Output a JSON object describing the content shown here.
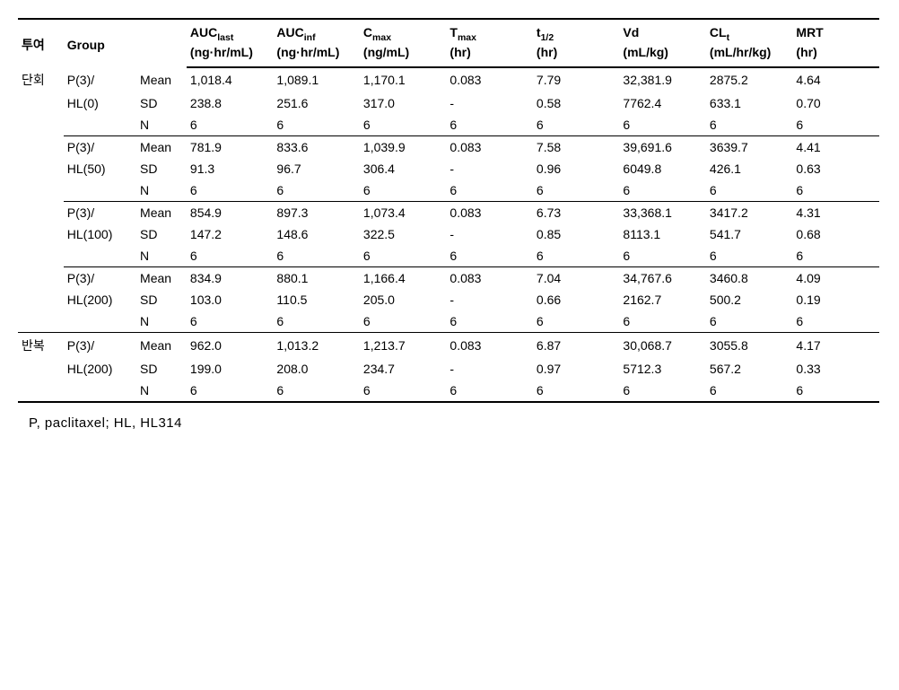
{
  "table": {
    "type": "table",
    "background_color": "#ffffff",
    "border_color": "#000000",
    "text_color": "#000000",
    "font_size": 14,
    "header_font_weight": 700,
    "columns": {
      "admin": {
        "label": "투여",
        "unit": ""
      },
      "group": {
        "label": "Group",
        "unit": ""
      },
      "stat": {
        "label": "",
        "unit": ""
      },
      "auclast": {
        "label_html": "AUC<sub>last</sub>",
        "unit": "(ng·hr/mL)"
      },
      "aucinf": {
        "label_html": "AUC<sub>inf</sub>",
        "unit": "(ng·hr/mL)"
      },
      "cmax": {
        "label_html": "C<sub>max</sub>",
        "unit": "(ng/mL)"
      },
      "tmax": {
        "label_html": "T<sub>max</sub>",
        "unit": "(hr)"
      },
      "thalf": {
        "label_html": "t<sub>1/2</sub>",
        "unit": "(hr)"
      },
      "vd": {
        "label": "Vd",
        "unit": "(mL/kg)"
      },
      "clt": {
        "label_html": "CL<sub>t</sub>",
        "unit": "(mL/hr/kg)"
      },
      "mrt": {
        "label": "MRT",
        "unit": "(hr)"
      }
    },
    "sections": [
      {
        "admin": "단회",
        "groups": [
          {
            "group_l1": "P(3)/",
            "group_l2": "HL(0)",
            "rows": [
              {
                "stat": "Mean",
                "auclast": "1,018.4",
                "aucinf": "1,089.1",
                "cmax": "1,170.1",
                "tmax": "0.083",
                "thalf": "7.79",
                "vd": "32,381.9",
                "clt": "2875.2",
                "mrt": "4.64"
              },
              {
                "stat": "SD",
                "auclast": "238.8",
                "aucinf": "251.6",
                "cmax": "317.0",
                "tmax": "-",
                "thalf": "0.58",
                "vd": "7762.4",
                "clt": "633.1",
                "mrt": "0.70"
              },
              {
                "stat": "N",
                "auclast": "6",
                "aucinf": "6",
                "cmax": "6",
                "tmax": "6",
                "thalf": "6",
                "vd": "6",
                "clt": "6",
                "mrt": "6"
              }
            ]
          },
          {
            "group_l1": "P(3)/",
            "group_l2": "HL(50)",
            "rows": [
              {
                "stat": "Mean",
                "auclast": "781.9",
                "aucinf": "833.6",
                "cmax": "1,039.9",
                "tmax": "0.083",
                "thalf": "7.58",
                "vd": "39,691.6",
                "clt": "3639.7",
                "mrt": "4.41"
              },
              {
                "stat": "SD",
                "auclast": "91.3",
                "aucinf": "96.7",
                "cmax": "306.4",
                "tmax": "-",
                "thalf": "0.96",
                "vd": "6049.8",
                "clt": "426.1",
                "mrt": "0.63"
              },
              {
                "stat": "N",
                "auclast": "6",
                "aucinf": "6",
                "cmax": "6",
                "tmax": "6",
                "thalf": "6",
                "vd": "6",
                "clt": "6",
                "mrt": "6"
              }
            ]
          },
          {
            "group_l1": "P(3)/",
            "group_l2": "HL(100)",
            "rows": [
              {
                "stat": "Mean",
                "auclast": "854.9",
                "aucinf": "897.3",
                "cmax": "1,073.4",
                "tmax": "0.083",
                "thalf": "6.73",
                "vd": "33,368.1",
                "clt": "3417.2",
                "mrt": "4.31"
              },
              {
                "stat": "SD",
                "auclast": "147.2",
                "aucinf": "148.6",
                "cmax": "322.5",
                "tmax": "-",
                "thalf": "0.85",
                "vd": "8113.1",
                "clt": "541.7",
                "mrt": "0.68"
              },
              {
                "stat": "N",
                "auclast": "6",
                "aucinf": "6",
                "cmax": "6",
                "tmax": "6",
                "thalf": "6",
                "vd": "6",
                "clt": "6",
                "mrt": "6"
              }
            ]
          },
          {
            "group_l1": "P(3)/",
            "group_l2": "HL(200)",
            "rows": [
              {
                "stat": "Mean",
                "auclast": "834.9",
                "aucinf": "880.1",
                "cmax": "1,166.4",
                "tmax": "0.083",
                "thalf": "7.04",
                "vd": "34,767.6",
                "clt": "3460.8",
                "mrt": "4.09"
              },
              {
                "stat": "SD",
                "auclast": "103.0",
                "aucinf": "110.5",
                "cmax": "205.0",
                "tmax": "-",
                "thalf": "0.66",
                "vd": "2162.7",
                "clt": "500.2",
                "mrt": "0.19"
              },
              {
                "stat": "N",
                "auclast": "6",
                "aucinf": "6",
                "cmax": "6",
                "tmax": "6",
                "thalf": "6",
                "vd": "6",
                "clt": "6",
                "mrt": "6"
              }
            ]
          }
        ]
      },
      {
        "admin": "반복",
        "groups": [
          {
            "group_l1": "P(3)/",
            "group_l2": "HL(200)",
            "rows": [
              {
                "stat": "Mean",
                "auclast": "962.0",
                "aucinf": "1,013.2",
                "cmax": "1,213.7",
                "tmax": "0.083",
                "thalf": "6.87",
                "vd": "30,068.7",
                "clt": "3055.8",
                "mrt": "4.17"
              },
              {
                "stat": "SD",
                "auclast": "199.0",
                "aucinf": "208.0",
                "cmax": "234.7",
                "tmax": "-",
                "thalf": "0.97",
                "vd": "5712.3",
                "clt": "567.2",
                "mrt": "0.33"
              },
              {
                "stat": "N",
                "auclast": "6",
                "aucinf": "6",
                "cmax": "6",
                "tmax": "6",
                "thalf": "6",
                "vd": "6",
                "clt": "6",
                "mrt": "6"
              }
            ]
          }
        ]
      }
    ]
  },
  "footnote": "P, paclitaxel; HL, HL314"
}
